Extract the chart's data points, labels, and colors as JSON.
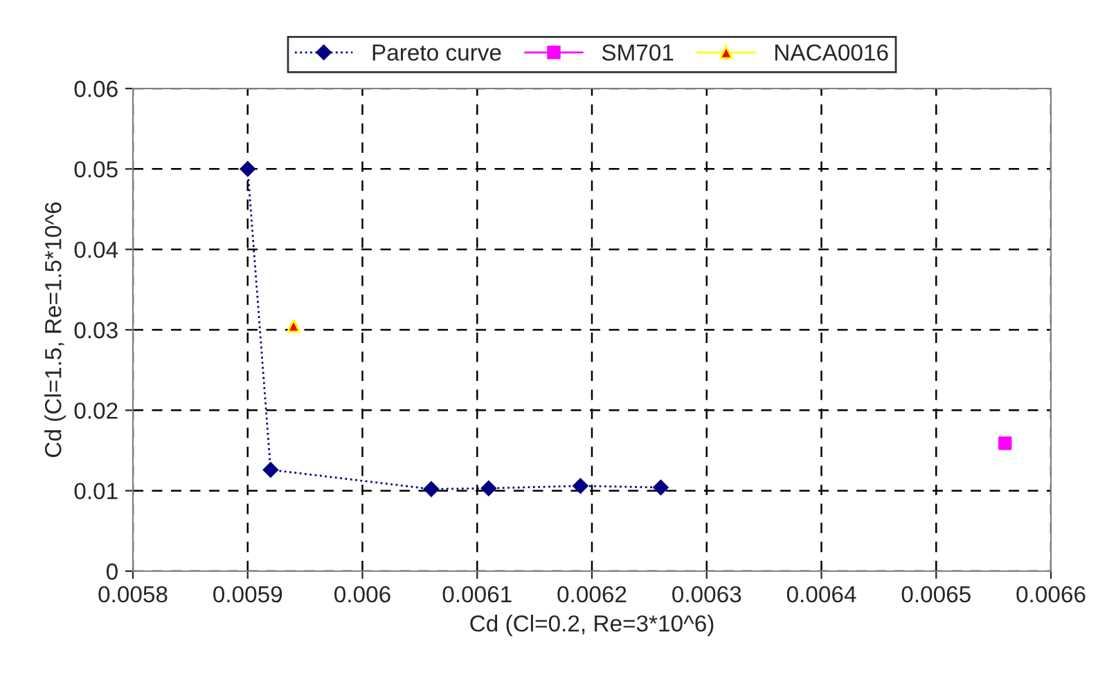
{
  "chart_data": {
    "type": "scatter",
    "xlabel": "Cd (Cl=0.2, Re=3*10^6)",
    "ylabel": "Cd (Cl=1.5, Re=1.5*10^6",
    "series": [
      {
        "name": "Pareto curve",
        "type": "line",
        "color": "#000080",
        "marker": "diamond",
        "line_style": "dotted",
        "x": [
          0.0059,
          0.00592,
          0.00606,
          0.00611,
          0.00619,
          0.00626
        ],
        "values": [
          0.05,
          0.0126,
          0.0102,
          0.0103,
          0.0106,
          0.0104
        ]
      },
      {
        "name": "SM701",
        "color": "#ff00ff",
        "marker": "square",
        "x": [
          0.00656
        ],
        "values": [
          0.0159
        ]
      },
      {
        "name": "NACA0016",
        "color": "#ff0000",
        "marker": "triangle",
        "x": [
          0.00594
        ],
        "values": [
          0.0305
        ]
      }
    ],
    "xlim": [
      0.0058,
      0.0066
    ],
    "xticks": [
      0.0058,
      0.0059,
      0.006,
      0.0061,
      0.0062,
      0.0063,
      0.0064,
      0.0065,
      0.0066
    ],
    "ylim": [
      0,
      0.06
    ],
    "yticks": [
      0,
      0.01,
      0.02,
      0.03,
      0.04,
      0.05,
      0.06
    ],
    "grid": true,
    "legend": "top"
  }
}
